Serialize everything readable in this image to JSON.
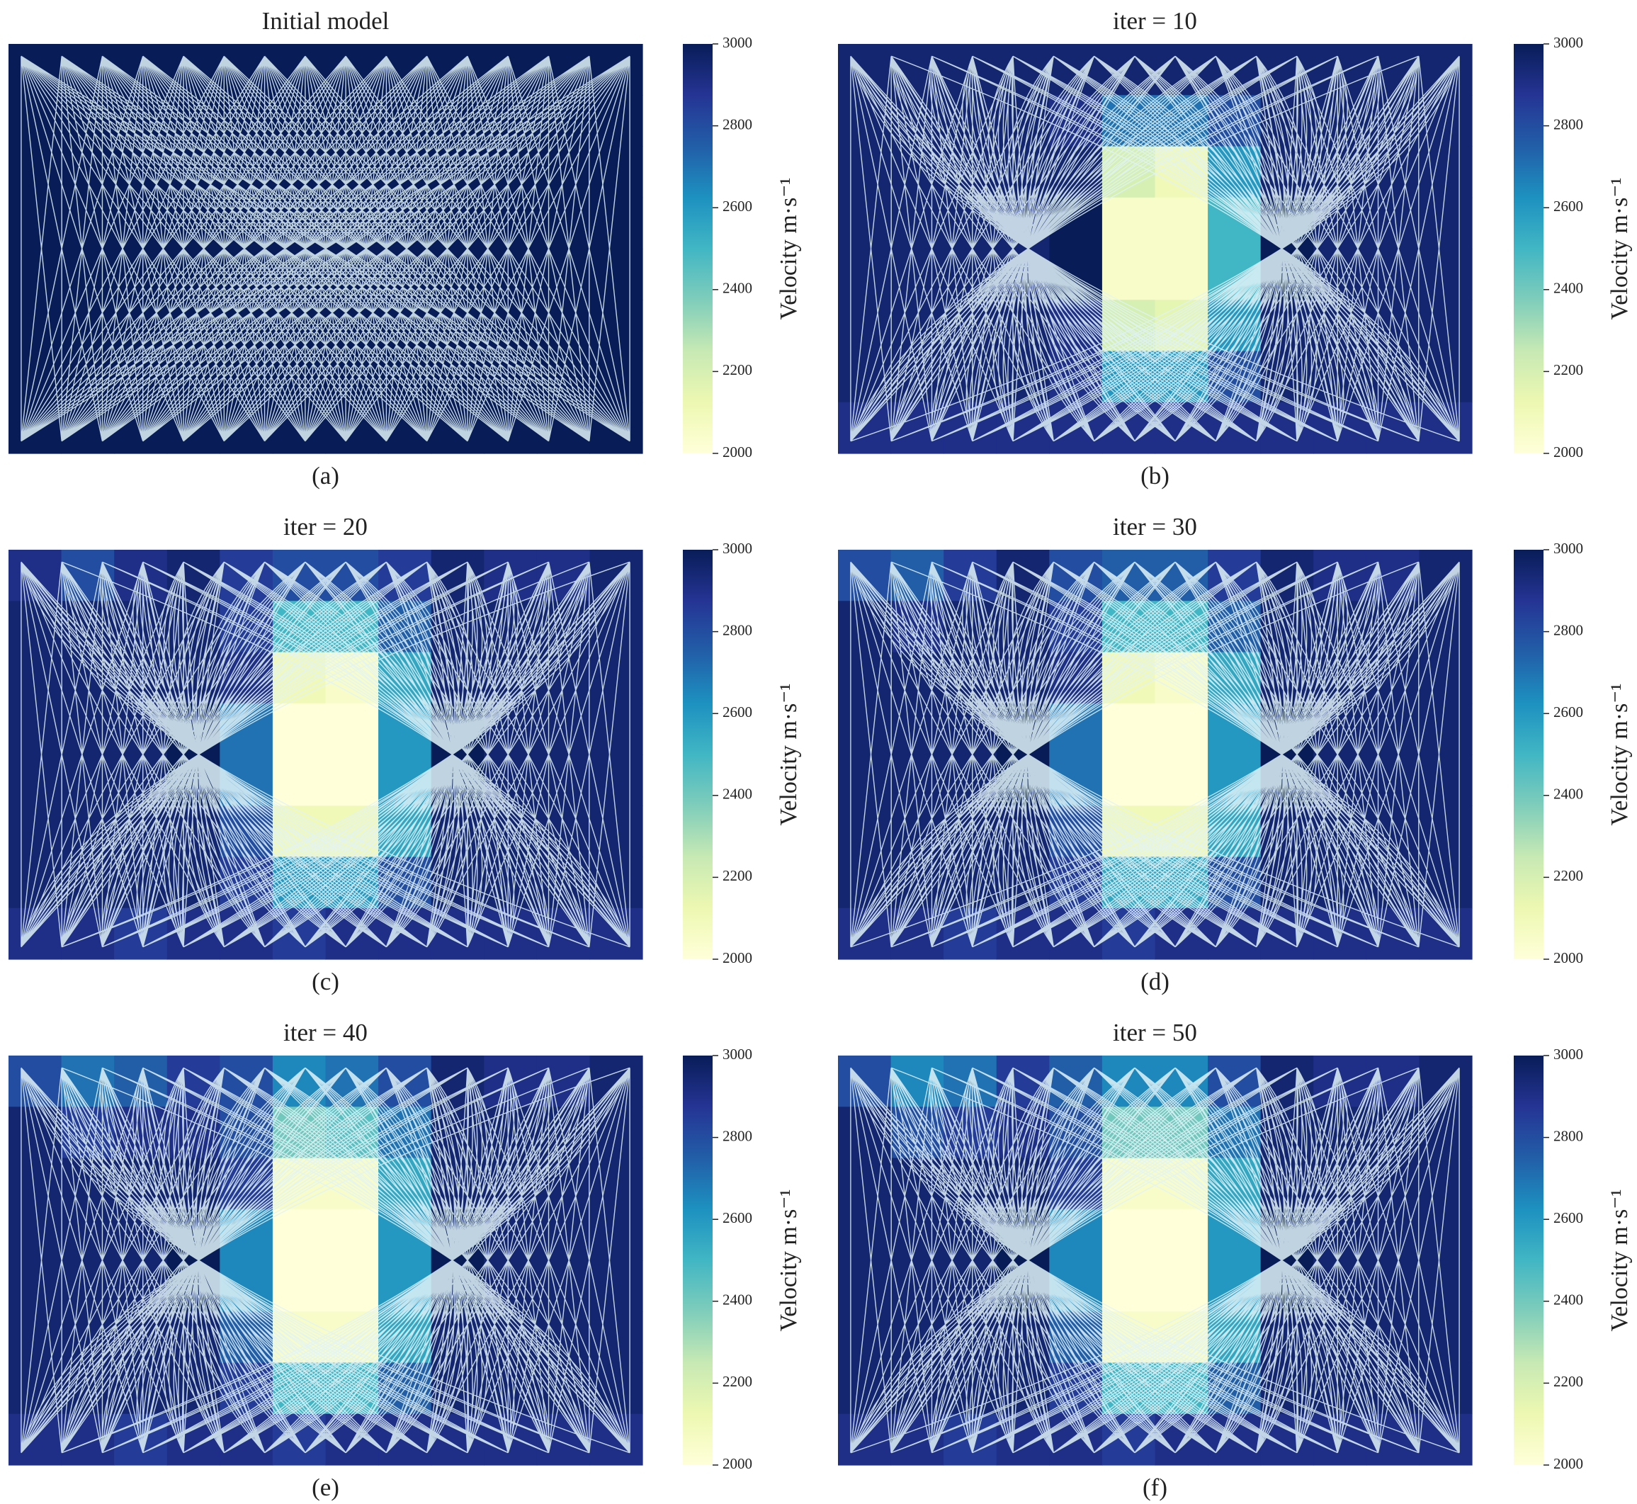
{
  "chart_data": [
    {
      "type": "heatmap",
      "title": "Initial model",
      "caption": "(a)",
      "colorbar_label": "Velocity m·s⁻¹",
      "zlim": [
        2000,
        3000
      ],
      "zticks": [
        2000,
        2200,
        2400,
        2600,
        2800,
        3000
      ],
      "colormap": [
        "#ffffd9",
        "#edf8b1",
        "#c7e9b4",
        "#7fcdbb",
        "#41b6c4",
        "#1d91c0",
        "#225ea8",
        "#253494",
        "#081d58"
      ],
      "values": [
        [
          3000,
          3000,
          3000,
          3000,
          3000,
          3000,
          3000,
          3000,
          3000,
          3000,
          3000,
          3000
        ],
        [
          3000,
          3000,
          3000,
          3000,
          3000,
          3000,
          3000,
          3000,
          3000,
          3000,
          3000,
          3000
        ],
        [
          3000,
          3000,
          3000,
          3000,
          3000,
          3000,
          3000,
          3000,
          3000,
          3000,
          3000,
          3000
        ],
        [
          3000,
          3000,
          3000,
          3000,
          3000,
          3000,
          3000,
          3000,
          3000,
          3000,
          3000,
          3000
        ],
        [
          3000,
          3000,
          3000,
          3000,
          3000,
          3000,
          3000,
          3000,
          3000,
          3000,
          3000,
          3000
        ],
        [
          3000,
          3000,
          3000,
          3000,
          3000,
          3000,
          3000,
          3000,
          3000,
          3000,
          3000,
          3000
        ],
        [
          3000,
          3000,
          3000,
          3000,
          3000,
          3000,
          3000,
          3000,
          3000,
          3000,
          3000,
          3000
        ],
        [
          3000,
          3000,
          3000,
          3000,
          3000,
          3000,
          3000,
          3000,
          3000,
          3000,
          3000,
          3000
        ]
      ]
    },
    {
      "type": "heatmap",
      "title": "iter = 10",
      "caption": "(b)",
      "colorbar_label": "Velocity m·s⁻¹",
      "zlim": [
        2000,
        3000
      ],
      "zticks": [
        2000,
        2200,
        2400,
        2600,
        2800,
        3000
      ],
      "colormap": [
        "#ffffd9",
        "#edf8b1",
        "#c7e9b4",
        "#7fcdbb",
        "#41b6c4",
        "#1d91c0",
        "#225ea8",
        "#253494",
        "#081d58"
      ],
      "values": [
        [
          2950,
          2950,
          2950,
          2950,
          2950,
          2950,
          2950,
          2950,
          2950,
          2950,
          2950,
          2950
        ],
        [
          2950,
          2950,
          2950,
          2950,
          2900,
          2700,
          2700,
          2800,
          2950,
          2950,
          2950,
          2950
        ],
        [
          2950,
          2950,
          2950,
          2950,
          2950,
          2200,
          2100,
          2600,
          2950,
          2950,
          2950,
          2950
        ],
        [
          2950,
          2950,
          2950,
          2950,
          3000,
          2050,
          2050,
          2500,
          3000,
          2950,
          2950,
          2950
        ],
        [
          2950,
          2950,
          2950,
          2950,
          3000,
          2050,
          2050,
          2500,
          3000,
          2950,
          2950,
          2950
        ],
        [
          2950,
          2950,
          2950,
          2950,
          2900,
          2200,
          2150,
          2600,
          2950,
          2950,
          2950,
          2950
        ],
        [
          2950,
          2950,
          2950,
          2950,
          2900,
          2600,
          2600,
          2800,
          2950,
          2950,
          2950,
          2950
        ],
        [
          2900,
          2900,
          2900,
          2900,
          2900,
          2900,
          2900,
          2900,
          2900,
          2900,
          2900,
          2900
        ]
      ]
    },
    {
      "type": "heatmap",
      "title": "iter = 20",
      "caption": "(c)",
      "colorbar_label": "Velocity m·s⁻¹",
      "zlim": [
        2000,
        3000
      ],
      "zticks": [
        2000,
        2200,
        2400,
        2600,
        2800,
        3000
      ],
      "colormap": [
        "#ffffd9",
        "#edf8b1",
        "#c7e9b4",
        "#7fcdbb",
        "#41b6c4",
        "#1d91c0",
        "#225ea8",
        "#253494",
        "#081d58"
      ],
      "values": [
        [
          2900,
          2800,
          2900,
          2950,
          2850,
          2800,
          2800,
          2850,
          2950,
          2900,
          2900,
          2950
        ],
        [
          2950,
          2950,
          2950,
          2950,
          2850,
          2500,
          2500,
          2750,
          2950,
          2950,
          2950,
          2950
        ],
        [
          2950,
          2950,
          2950,
          2950,
          2900,
          2100,
          2050,
          2550,
          2950,
          2950,
          2950,
          2950
        ],
        [
          2950,
          2950,
          2950,
          3000,
          2700,
          2000,
          2000,
          2600,
          3000,
          2950,
          2950,
          2950
        ],
        [
          2950,
          2950,
          2950,
          3000,
          2700,
          2000,
          2000,
          2600,
          3000,
          2950,
          2950,
          2950
        ],
        [
          2950,
          2950,
          2950,
          2950,
          2800,
          2100,
          2100,
          2550,
          2950,
          2950,
          2950,
          2950
        ],
        [
          2950,
          2950,
          2950,
          2950,
          2850,
          2600,
          2600,
          2800,
          2950,
          2950,
          2950,
          2950
        ],
        [
          2900,
          2900,
          2850,
          2900,
          2900,
          2850,
          2900,
          2900,
          2900,
          2900,
          2900,
          2900
        ]
      ]
    },
    {
      "type": "heatmap",
      "title": "iter = 30",
      "caption": "(d)",
      "colorbar_label": "Velocity m·s⁻¹",
      "zlim": [
        2000,
        3000
      ],
      "zticks": [
        2000,
        2200,
        2400,
        2600,
        2800,
        3000
      ],
      "colormap": [
        "#ffffd9",
        "#edf8b1",
        "#c7e9b4",
        "#7fcdbb",
        "#41b6c4",
        "#1d91c0",
        "#225ea8",
        "#253494",
        "#081d58"
      ],
      "values": [
        [
          2800,
          2750,
          2850,
          2950,
          2800,
          2750,
          2750,
          2850,
          2950,
          2900,
          2900,
          2950
        ],
        [
          2950,
          2900,
          2950,
          2950,
          2850,
          2500,
          2500,
          2750,
          2950,
          2950,
          2950,
          2950
        ],
        [
          2950,
          2950,
          2950,
          2950,
          2900,
          2100,
          2050,
          2550,
          2950,
          2950,
          2950,
          2950
        ],
        [
          2950,
          2950,
          2950,
          3000,
          2700,
          2000,
          2000,
          2600,
          3000,
          2950,
          2950,
          2950
        ],
        [
          2950,
          2950,
          2950,
          3000,
          2700,
          2000,
          2000,
          2600,
          3000,
          2950,
          2950,
          2950
        ],
        [
          2950,
          2950,
          2950,
          2950,
          2800,
          2100,
          2100,
          2550,
          2950,
          2950,
          2950,
          2950
        ],
        [
          2950,
          2950,
          2950,
          2950,
          2850,
          2550,
          2550,
          2800,
          2950,
          2950,
          2950,
          2950
        ],
        [
          2900,
          2900,
          2850,
          2900,
          2900,
          2850,
          2900,
          2900,
          2900,
          2900,
          2900,
          2900
        ]
      ]
    },
    {
      "type": "heatmap",
      "title": "iter = 40",
      "caption": "(e)",
      "colorbar_label": "Velocity m·s⁻¹",
      "zlim": [
        2000,
        3000
      ],
      "zticks": [
        2000,
        2200,
        2400,
        2600,
        2800,
        3000
      ],
      "colormap": [
        "#ffffd9",
        "#edf8b1",
        "#c7e9b4",
        "#7fcdbb",
        "#41b6c4",
        "#1d91c0",
        "#225ea8",
        "#253494",
        "#081d58"
      ],
      "values": [
        [
          2800,
          2700,
          2750,
          2850,
          2800,
          2650,
          2700,
          2800,
          2950,
          2900,
          2900,
          2950
        ],
        [
          2950,
          2850,
          2900,
          2900,
          2800,
          2400,
          2450,
          2700,
          2950,
          2950,
          2950,
          2950
        ],
        [
          2950,
          2950,
          2950,
          2950,
          2850,
          2050,
          2050,
          2550,
          2950,
          2950,
          2950,
          2950
        ],
        [
          2950,
          2950,
          2950,
          3000,
          2650,
          2000,
          2000,
          2600,
          3000,
          2950,
          2950,
          2950
        ],
        [
          2950,
          2950,
          2950,
          3000,
          2650,
          2000,
          2000,
          2600,
          3000,
          2950,
          2950,
          2950
        ],
        [
          2950,
          2950,
          2950,
          2950,
          2750,
          2050,
          2050,
          2550,
          2950,
          2950,
          2950,
          2950
        ],
        [
          2950,
          2950,
          2950,
          2950,
          2850,
          2500,
          2500,
          2750,
          2950,
          2950,
          2950,
          2950
        ],
        [
          2900,
          2900,
          2850,
          2900,
          2900,
          2850,
          2900,
          2900,
          2900,
          2900,
          2900,
          2900
        ]
      ]
    },
    {
      "type": "heatmap",
      "title": "iter = 50",
      "caption": "(f)",
      "colorbar_label": "Velocity m·s⁻¹",
      "zlim": [
        2000,
        3000
      ],
      "zticks": [
        2000,
        2200,
        2400,
        2600,
        2800,
        3000
      ],
      "colormap": [
        "#ffffd9",
        "#edf8b1",
        "#c7e9b4",
        "#7fcdbb",
        "#41b6c4",
        "#1d91c0",
        "#225ea8",
        "#253494",
        "#081d58"
      ],
      "values": [
        [
          2800,
          2650,
          2700,
          2850,
          2750,
          2650,
          2650,
          2800,
          2950,
          2900,
          2900,
          2950
        ],
        [
          2950,
          2800,
          2850,
          2900,
          2800,
          2400,
          2400,
          2700,
          2950,
          2950,
          2950,
          2950
        ],
        [
          2950,
          2950,
          2950,
          2950,
          2850,
          2050,
          2050,
          2550,
          2950,
          2950,
          2950,
          2950
        ],
        [
          2950,
          2950,
          2950,
          3000,
          2650,
          2000,
          2000,
          2600,
          3000,
          2950,
          2950,
          2950
        ],
        [
          2950,
          2950,
          2950,
          3000,
          2650,
          2000,
          2000,
          2600,
          3000,
          2950,
          2950,
          2950
        ],
        [
          2950,
          2950,
          2950,
          2950,
          2750,
          2050,
          2050,
          2550,
          2950,
          2950,
          2950,
          2950
        ],
        [
          2950,
          2950,
          2950,
          2950,
          2850,
          2500,
          2500,
          2750,
          2950,
          2950,
          2950,
          2950
        ],
        [
          2900,
          2900,
          2850,
          2900,
          2900,
          2850,
          2900,
          2900,
          2900,
          2900,
          2900,
          2900
        ]
      ]
    }
  ]
}
